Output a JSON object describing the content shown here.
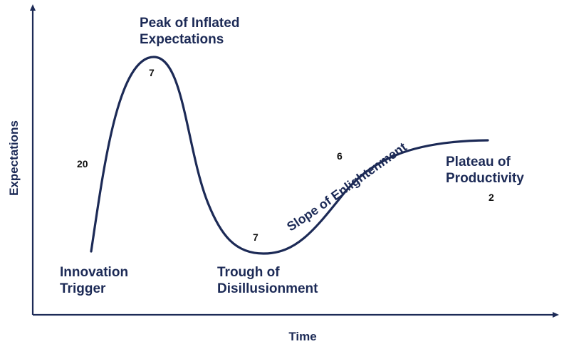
{
  "axes": {
    "y_title": "Expectations",
    "x_title": "Time"
  },
  "phases": {
    "innovation_trigger": [
      "Innovation",
      "Trigger"
    ],
    "peak": [
      "Peak of Inflated",
      "Expectations"
    ],
    "trough": [
      "Trough of",
      "Disillusionment"
    ],
    "slope": "Slope of Enlightenment",
    "plateau": [
      "Plateau of",
      "Productivity"
    ]
  },
  "counts": {
    "innovation_trigger": "20",
    "peak": "7",
    "trough": "7",
    "slope": "6",
    "plateau": "2"
  },
  "colors": {
    "ink": "#1c2a56",
    "count_text": "#111111",
    "background": "#ffffff"
  }
}
